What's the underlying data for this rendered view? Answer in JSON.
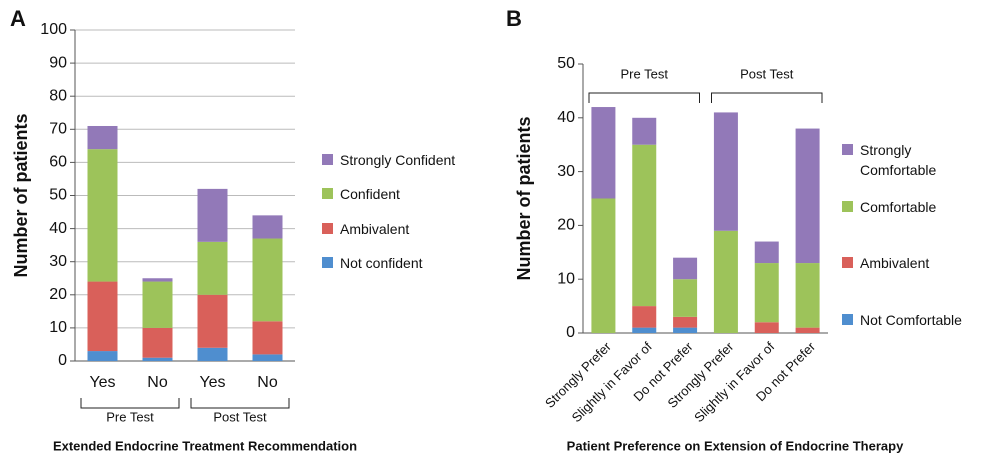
{
  "chart_data": [
    {
      "type": "stacked_bar",
      "panel": "A",
      "title": "Extended Endocrine Treatment Recommendation",
      "y_label": "Number of patients",
      "categories": [
        "Yes",
        "No",
        "Yes",
        "No"
      ],
      "groups": [
        "Pre Test",
        "Post Test"
      ],
      "series": [
        {
          "name": "Not confident",
          "color": "#4f8ecf",
          "values": [
            3,
            1,
            4,
            2
          ]
        },
        {
          "name": "Ambivalent",
          "color": "#d9605a",
          "values": [
            21,
            9,
            16,
            10
          ]
        },
        {
          "name": "Confident",
          "color": "#9dc35a",
          "values": [
            40,
            14,
            16,
            25
          ]
        },
        {
          "name": "Strongly Confident",
          "color": "#9279b8",
          "values": [
            7,
            1,
            16,
            7
          ]
        }
      ],
      "ylim": [
        0,
        100
      ],
      "yticks": [
        0,
        10,
        20,
        30,
        40,
        50,
        60,
        70,
        80,
        90,
        100
      ],
      "grid": true
    },
    {
      "type": "stacked_bar",
      "panel": "B",
      "title": "Patient Preference on Extension of Endocrine Therapy",
      "y_label": "Number of patients",
      "categories": [
        "Strongly Prefer",
        "Slightly in Favor of",
        "Do not Prefer",
        "Strongly Prefer",
        "Slightly in Favor of",
        "Do not Prefer"
      ],
      "groups": [
        "Pre Test",
        "Post Test"
      ],
      "series": [
        {
          "name": "Not Comfortable",
          "color": "#4f8ecf",
          "values": [
            0,
            1,
            1,
            0,
            0,
            0
          ]
        },
        {
          "name": "Ambivalent",
          "color": "#d9605a",
          "values": [
            0,
            4,
            2,
            0,
            2,
            1
          ]
        },
        {
          "name": "Comfortable",
          "color": "#9dc35a",
          "values": [
            25,
            30,
            7,
            19,
            11,
            12
          ]
        },
        {
          "name": "Strongly Comfortable",
          "color": "#9279b8",
          "values": [
            17,
            5,
            4,
            22,
            4,
            25
          ]
        }
      ],
      "ylim": [
        0,
        50
      ],
      "yticks": [
        0,
        10,
        20,
        30,
        40,
        50
      ],
      "grid": false
    }
  ]
}
